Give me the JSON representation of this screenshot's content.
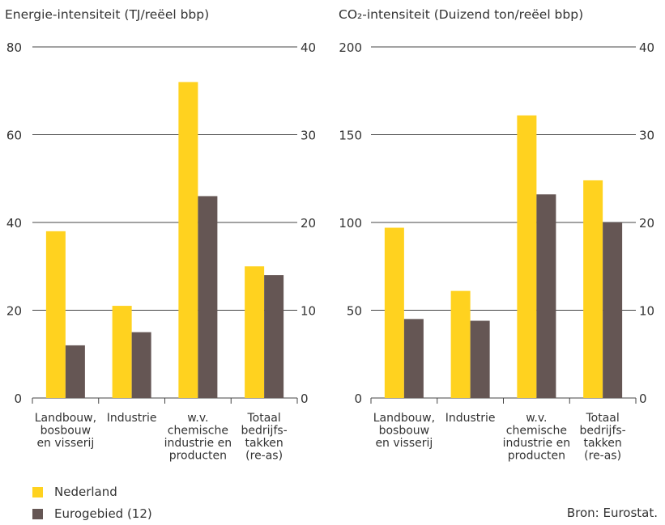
{
  "colors": {
    "nederland": "#ffd21f",
    "eurogebied": "#655654",
    "grid": "#444444",
    "text": "#333333"
  },
  "chart_data": [
    {
      "type": "bar",
      "title": "Energie-intensiteit (TJ/reëel bbp)",
      "categories": [
        [
          "Landbouw,",
          "bosbouw",
          "en visserij"
        ],
        [
          "Industrie"
        ],
        [
          "w.v.",
          "chemische",
          "industrie en",
          "producten"
        ],
        [
          "Totaal",
          "bedrijfs-",
          "takken",
          "(re-as)"
        ]
      ],
      "series": [
        {
          "name": "Nederland",
          "values": [
            38,
            21,
            72,
            15
          ],
          "color": "#ffd21f"
        },
        {
          "name": "Eurogebied (12)",
          "values": [
            12,
            15,
            46,
            14
          ],
          "color": "#655654"
        }
      ],
      "ylim": [
        0,
        80
      ],
      "yticks": [
        "0",
        "20",
        "40",
        "60",
        "80"
      ],
      "y2lim": [
        0,
        40
      ],
      "y2ticks": [
        "0",
        "10",
        "20",
        "30",
        "40"
      ],
      "secondary_axis_categories": [
        3
      ],
      "grid": true
    },
    {
      "type": "bar",
      "title": "CO₂-intensiteit (Duizend ton/reëel bbp)",
      "categories": [
        [
          "Landbouw,",
          "bosbouw",
          "en visserij"
        ],
        [
          "Industrie"
        ],
        [
          "w.v.",
          "chemische",
          "industrie en",
          "producten"
        ],
        [
          "Totaal",
          "bedrijfs-",
          "takken",
          "(re-as)"
        ]
      ],
      "series": [
        {
          "name": "Nederland",
          "values": [
            97,
            61,
            161,
            24.8
          ],
          "color": "#ffd21f"
        },
        {
          "name": "Eurogebied (12)",
          "values": [
            45,
            44,
            116,
            20
          ],
          "color": "#655654"
        }
      ],
      "ylim": [
        0,
        200
      ],
      "yticks": [
        "0",
        "50",
        "100",
        "150",
        "200"
      ],
      "y2lim": [
        0,
        40
      ],
      "y2ticks": [
        "0",
        "10",
        "20",
        "30",
        "40"
      ],
      "secondary_axis_categories": [
        3
      ],
      "grid": true
    }
  ],
  "legend": [
    {
      "label": "Nederland",
      "color": "#ffd21f"
    },
    {
      "label": "Eurogebied (12)",
      "color": "#655654"
    }
  ],
  "source": "Bron: Eurostat."
}
